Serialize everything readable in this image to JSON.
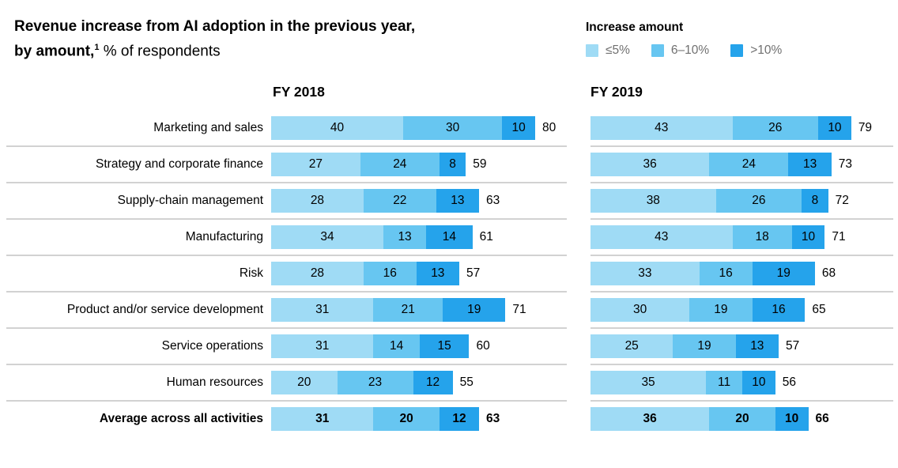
{
  "title": {
    "line1": "Revenue increase from AI adoption in the previous year,",
    "line2_bold": "by amount,",
    "line2_sup": "1",
    "line2_rest": " % of respondents"
  },
  "legend": {
    "title": "Increase amount",
    "entries": [
      {
        "label": "≤5%",
        "color": "#9fdbf5"
      },
      {
        "label": "6–10%",
        "color": "#67c6f1"
      },
      {
        "label": ">10%",
        "color": "#25a3eb"
      }
    ]
  },
  "chart_data": {
    "type": "bar",
    "orientation": "horizontal",
    "stacked": true,
    "unit": "% of respondents",
    "series_names": [
      "≤5%",
      "6–10%",
      ">10%"
    ],
    "series_colors": [
      "#9fdbf5",
      "#67c6f1",
      "#25a3eb"
    ],
    "categories": [
      "Marketing and sales",
      "Strategy and corporate finance",
      "Supply-chain management",
      "Manufacturing",
      "Risk",
      "Product and/or service development",
      "Service operations",
      "Human resources",
      "Average across all activities"
    ],
    "emphasized_category": "Average across all activities",
    "value_axis_max": 80,
    "panels": [
      {
        "label": "FY 2018",
        "rows": [
          {
            "values": [
              40,
              30,
              10
            ],
            "total": 80
          },
          {
            "values": [
              27,
              24,
              8
            ],
            "total": 59
          },
          {
            "values": [
              28,
              22,
              13
            ],
            "total": 63
          },
          {
            "values": [
              34,
              13,
              14
            ],
            "total": 61
          },
          {
            "values": [
              28,
              16,
              13
            ],
            "total": 57
          },
          {
            "values": [
              31,
              21,
              19
            ],
            "total": 71
          },
          {
            "values": [
              31,
              14,
              15
            ],
            "total": 60
          },
          {
            "values": [
              20,
              23,
              12
            ],
            "total": 55
          },
          {
            "values": [
              31,
              20,
              12
            ],
            "total": 63
          }
        ]
      },
      {
        "label": "FY 2019",
        "rows": [
          {
            "values": [
              43,
              26,
              10
            ],
            "total": 79
          },
          {
            "values": [
              36,
              24,
              13
            ],
            "total": 73
          },
          {
            "values": [
              38,
              26,
              8
            ],
            "total": 72
          },
          {
            "values": [
              43,
              18,
              10
            ],
            "total": 71
          },
          {
            "values": [
              33,
              16,
              19
            ],
            "total": 68
          },
          {
            "values": [
              30,
              19,
              16
            ],
            "total": 65
          },
          {
            "values": [
              25,
              19,
              13
            ],
            "total": 57
          },
          {
            "values": [
              35,
              11,
              10
            ],
            "total": 56
          },
          {
            "values": [
              36,
              20,
              10
            ],
            "total": 66
          }
        ]
      }
    ]
  }
}
